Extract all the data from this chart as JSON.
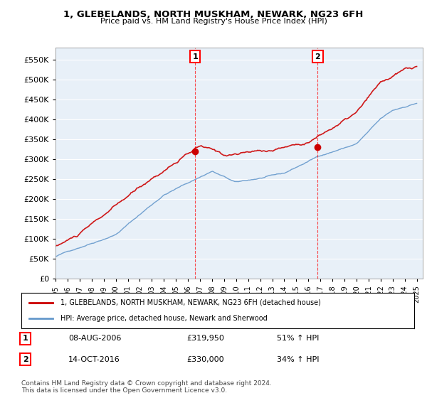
{
  "title": "1, GLEBELANDS, NORTH MUSKHAM, NEWARK, NG23 6FH",
  "subtitle": "Price paid vs. HM Land Registry's House Price Index (HPI)",
  "ylabel_ticks": [
    "£0",
    "£50K",
    "£100K",
    "£150K",
    "£200K",
    "£250K",
    "£300K",
    "£350K",
    "£400K",
    "£450K",
    "£500K",
    "£550K"
  ],
  "ylim": [
    0,
    575000
  ],
  "xlim_start": 1995.0,
  "xlim_end": 2025.5,
  "legend_line1": "1, GLEBELANDS, NORTH MUSKHAM, NEWARK, NG23 6FH (detached house)",
  "legend_line2": "HPI: Average price, detached house, Newark and Sherwood",
  "purchase1_date": "08-AUG-2006",
  "purchase1_price": "£319,950",
  "purchase1_hpi": "51% ↑ HPI",
  "purchase2_date": "14-OCT-2016",
  "purchase2_price": "£330,000",
  "purchase2_hpi": "34% ↑ HPI",
  "footnote": "Contains HM Land Registry data © Crown copyright and database right 2024.\nThis data is licensed under the Open Government Licence v3.0.",
  "red_color": "#cc0000",
  "blue_color": "#6699cc",
  "marker1_x": 2006.6,
  "marker1_y": 319950,
  "marker2_x": 2016.78,
  "marker2_y": 330000,
  "background_color": "#e8f0f8"
}
